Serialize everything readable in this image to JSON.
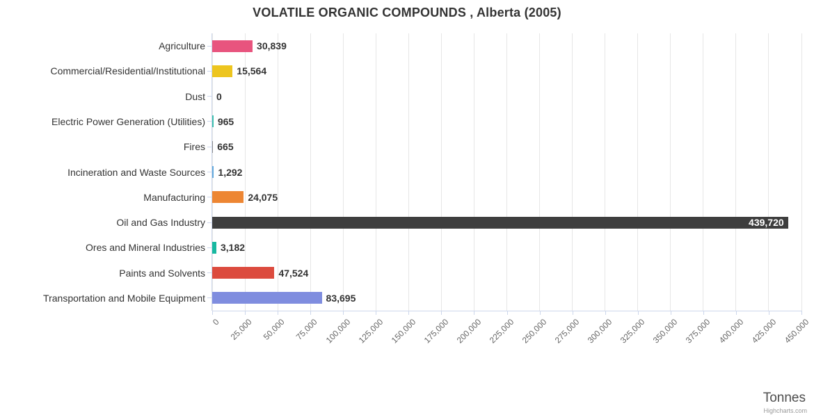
{
  "title": "VOLATILE ORGANIC COMPOUNDS , Alberta (2005)",
  "xaxis": {
    "title": "Tonnes",
    "min": 0,
    "max": 450000,
    "tick_interval": 25000
  },
  "credit": "Highcharts.com",
  "chart_data": {
    "type": "bar",
    "orientation": "horizontal",
    "title": "VOLATILE ORGANIC COMPOUNDS , Alberta (2005)",
    "categories": [
      "Agriculture",
      "Commercial/Residential/Institutional",
      "Dust",
      "Electric Power Generation (Utilities)",
      "Fires",
      "Incineration and Waste Sources",
      "Manufacturing",
      "Oil and Gas Industry",
      "Ores and Mineral Industries",
      "Paints and Solvents",
      "Transportation and Mobile Equipment"
    ],
    "values": [
      30839,
      15564,
      0,
      965,
      665,
      1292,
      24075,
      439720,
      3182,
      47524,
      83695
    ],
    "value_labels": [
      "30,839",
      "15,564",
      "0",
      "965",
      "665",
      "1,292",
      "24,075",
      "439,720",
      "3,182",
      "47,524",
      "83,695"
    ],
    "colors": [
      "#e8547e",
      "#edc51f",
      "#bdbdbd",
      "#3dbfae",
      "#8d8d8d",
      "#62a9dc",
      "#ed8633",
      "#3e3e3e",
      "#17b8a0",
      "#dc4b3e",
      "#7f8ddf"
    ],
    "xlabel": "Tonnes",
    "xlim": [
      0,
      450000
    ],
    "x_tick_interval": 25000,
    "grid": true,
    "legend": false
  }
}
